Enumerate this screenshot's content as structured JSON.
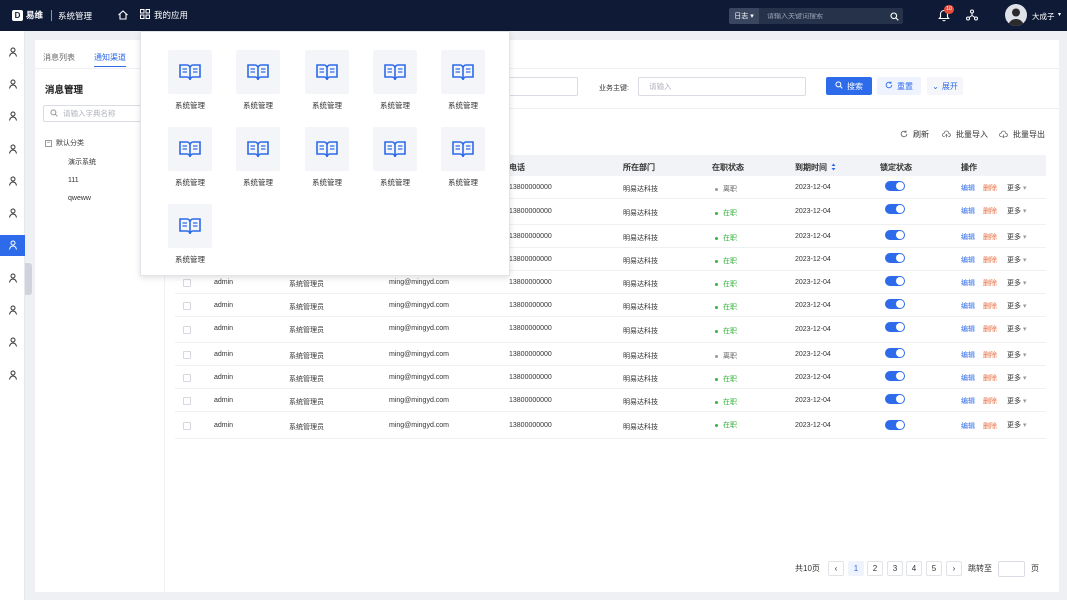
{
  "topbar": {
    "logo_mark": "D",
    "logo_text": "易维",
    "system_title": "系统管理",
    "apps_label": "我的应用",
    "search_category": "日志",
    "search_placeholder": "请输入关键词搜索",
    "notification_count": "10",
    "username": "大成子"
  },
  "tabs": [
    "消息列表",
    "通知渠道"
  ],
  "left_panel": {
    "title": "消息管理",
    "search_placeholder": "请输入字典名称",
    "tree_root": "默认分类",
    "tree_children": [
      "演示系统",
      "111",
      "qweww"
    ]
  },
  "filters": {
    "field1_placeholder": "",
    "business_key_label": "业务主键:",
    "business_key_placeholder": "请输入",
    "search_label": "搜索",
    "reset_label": "重置",
    "expand_label": "展开"
  },
  "toolbar": {
    "refresh": "刷新",
    "import": "批量导入",
    "export": "批量导出"
  },
  "table": {
    "headers": {
      "phone": "电话",
      "dept": "所在部门",
      "status": "在职状态",
      "expire": "到期时间",
      "lock": "锁定状态",
      "ops": "操作"
    },
    "action_edit": "编辑",
    "action_delete": "删除",
    "action_more": "更多",
    "rows": [
      {
        "name": "",
        "role": "",
        "email": "",
        "phone": "13800000000",
        "dept": "明易达科技",
        "status": "离职",
        "expire": "2023-12-04"
      },
      {
        "name": "",
        "role": "",
        "email": "",
        "phone": "13800000000",
        "dept": "明易达科技",
        "status": "在职",
        "expire": "2023-12-04"
      },
      {
        "name": "",
        "role": "",
        "email": "",
        "phone": "13800000000",
        "dept": "明易达科技",
        "status": "在职",
        "expire": "2023-12-04"
      },
      {
        "name": "",
        "role": "",
        "email": "",
        "phone": "13800000000",
        "dept": "明易达科技",
        "status": "在职",
        "expire": "2023-12-04"
      },
      {
        "name": "admin",
        "role": "系统管理员",
        "email": "ming@mingyd.com",
        "phone": "13800000000",
        "dept": "明易达科技",
        "status": "在职",
        "expire": "2023-12-04"
      },
      {
        "name": "admin",
        "role": "系统管理员",
        "email": "ming@mingyd.com",
        "phone": "13800000000",
        "dept": "明易达科技",
        "status": "在职",
        "expire": "2023-12-04"
      },
      {
        "name": "admin",
        "role": "系统管理员",
        "email": "ming@mingyd.com",
        "phone": "13800000000",
        "dept": "明易达科技",
        "status": "在职",
        "expire": "2023-12-04"
      },
      {
        "name": "admin",
        "role": "系统管理员",
        "email": "ming@mingyd.com",
        "phone": "13800000000",
        "dept": "明易达科技",
        "status": "离职",
        "expire": "2023-12-04"
      },
      {
        "name": "admin",
        "role": "系统管理员",
        "email": "ming@mingyd.com",
        "phone": "13800000000",
        "dept": "明易达科技",
        "status": "在职",
        "expire": "2023-12-04"
      },
      {
        "name": "admin",
        "role": "系统管理员",
        "email": "ming@mingyd.com",
        "phone": "13800000000",
        "dept": "明易达科技",
        "status": "在职",
        "expire": "2023-12-04"
      },
      {
        "name": "admin",
        "role": "系统管理员",
        "email": "ming@mingyd.com",
        "phone": "13800000000",
        "dept": "明易达科技",
        "status": "在职",
        "expire": "2023-12-04"
      }
    ]
  },
  "pagination": {
    "total": "共10页",
    "pages": [
      "1",
      "2",
      "3",
      "4",
      "5"
    ],
    "current": "1",
    "jump_label": "跳转至",
    "page_suffix": "页"
  },
  "apps_dropdown": {
    "items": [
      "系统管理",
      "系统管理",
      "系统管理",
      "系统管理",
      "系统管理",
      "系统管理",
      "系统管理",
      "系统管理",
      "系统管理",
      "系统管理",
      "系统管理"
    ]
  },
  "colors": {
    "primary": "#2e6bea",
    "topbar": "#0f1b36",
    "active_status": "#36b33e",
    "inactive_status": "#999999",
    "delete": "#e86a3c"
  }
}
